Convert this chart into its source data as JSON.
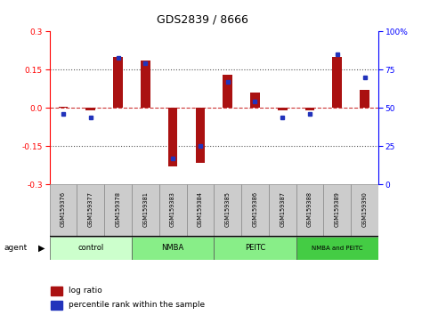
{
  "title": "GDS2839 / 8666",
  "samples": [
    "GSM159376",
    "GSM159377",
    "GSM159378",
    "GSM159381",
    "GSM159383",
    "GSM159384",
    "GSM159385",
    "GSM159386",
    "GSM159387",
    "GSM159388",
    "GSM159389",
    "GSM159390"
  ],
  "log_ratios": [
    0.005,
    -0.01,
    0.2,
    0.185,
    -0.23,
    -0.215,
    0.13,
    0.06,
    -0.008,
    -0.008,
    0.2,
    0.07
  ],
  "percentile_ranks": [
    46,
    44,
    83,
    79,
    17,
    25,
    67,
    54,
    44,
    46,
    85,
    70
  ],
  "bar_color": "#aa1111",
  "dot_color": "#2233bb",
  "zero_line_color": "#cc3333",
  "dotted_line_color": "#555555",
  "ylim": [
    -0.3,
    0.3
  ],
  "yticks_left": [
    -0.3,
    -0.15,
    0.0,
    0.15,
    0.3
  ],
  "yticks_right": [
    0,
    25,
    50,
    75,
    100
  ],
  "agent_groups": [
    {
      "label": "control",
      "start": 0,
      "end": 3,
      "color": "#ccffcc"
    },
    {
      "label": "NMBA",
      "start": 3,
      "end": 6,
      "color": "#66ee66"
    },
    {
      "label": "PEITC",
      "start": 6,
      "end": 9,
      "color": "#66ee66"
    },
    {
      "label": "NMBA and PEITC",
      "start": 9,
      "end": 12,
      "color": "#44dd44"
    }
  ],
  "legend_bar_label": "log ratio",
  "legend_dot_label": "percentile rank within the sample",
  "bar_width": 0.35,
  "background_color": "#ffffff"
}
